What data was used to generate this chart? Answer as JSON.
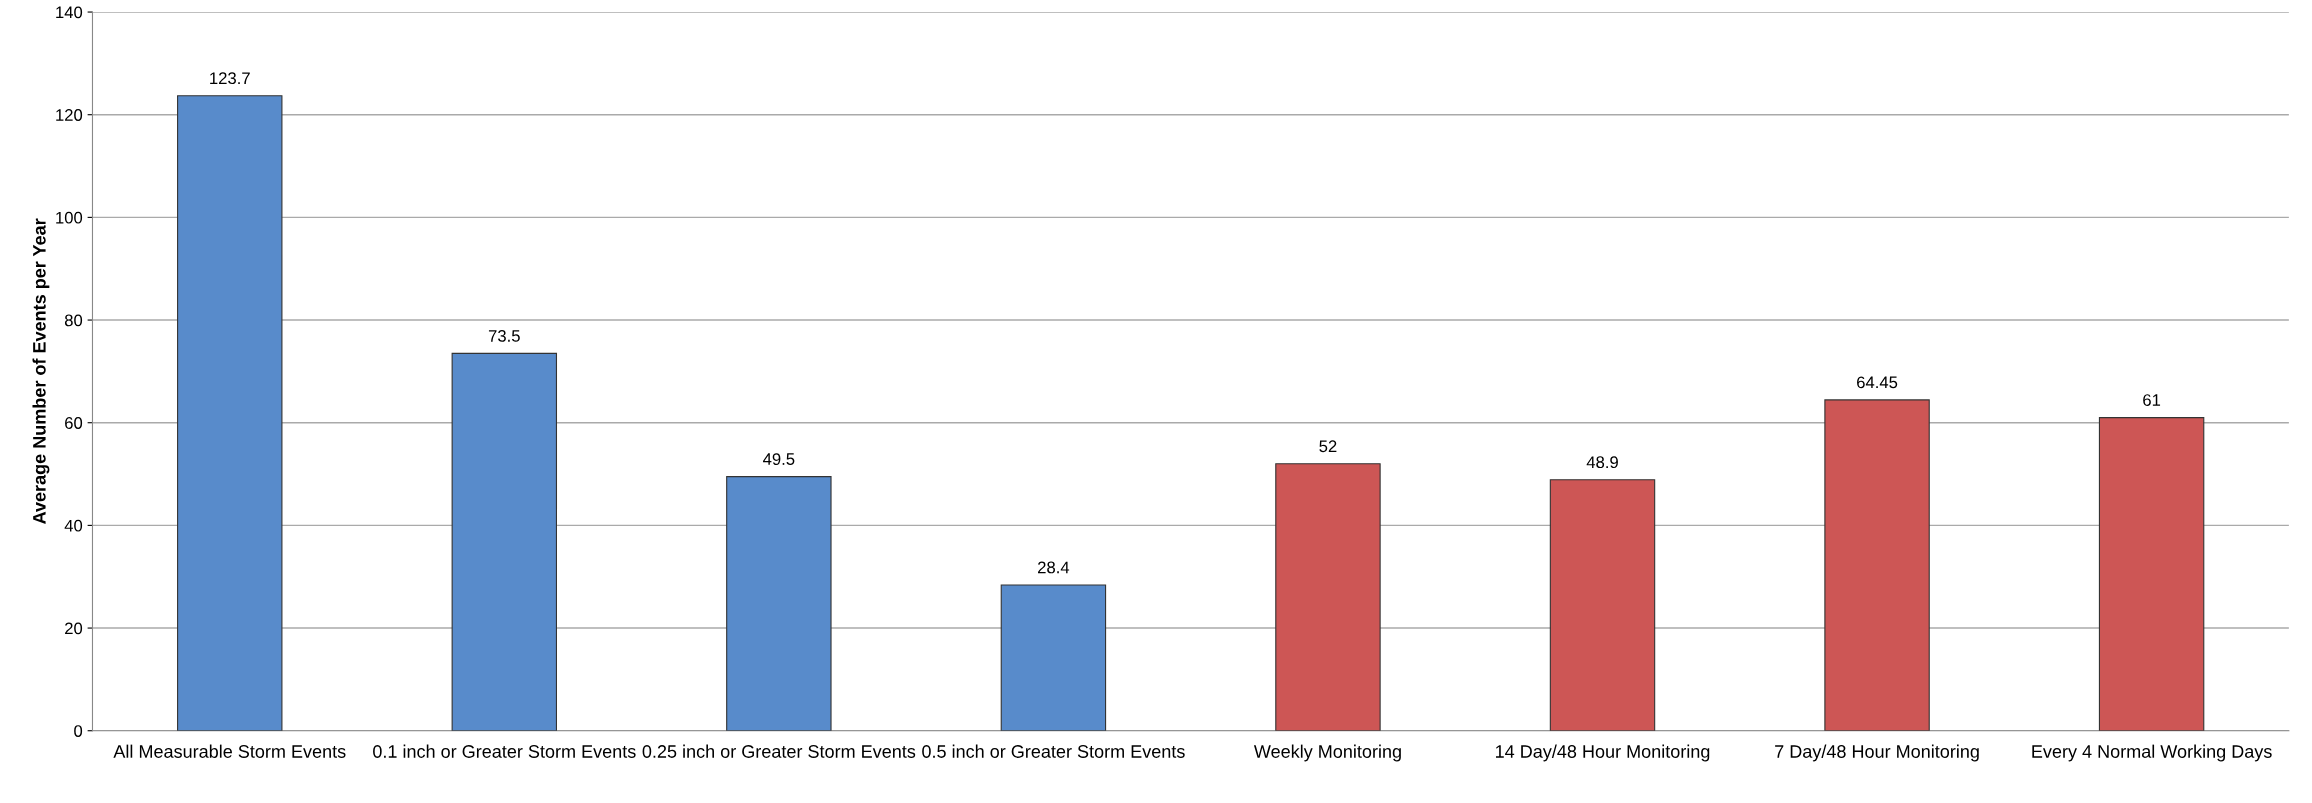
{
  "chart_data": {
    "type": "bar",
    "ylabel": "Average Number of Events per Year",
    "categories": [
      "All Measurable Storm Events",
      "0.1 inch or Greater Storm Events",
      "0.25 inch or Greater Storm Events",
      "0.5 inch or Greater Storm Events",
      "Weekly Monitoring",
      "14 Day/48 Hour Monitoring",
      "7 Day/48 Hour Monitoring",
      "Every 4 Normal Working Days"
    ],
    "values": [
      123.7,
      73.5,
      49.5,
      28.4,
      52,
      48.9,
      64.45,
      61
    ],
    "colors": [
      "#588bcb",
      "#588bcb",
      "#588bcb",
      "#588bcb",
      "#cd5655",
      "#cd5655",
      "#cd5655",
      "#cd5655"
    ],
    "data_labels": true,
    "ylim": [
      0,
      140
    ],
    "yticks": [
      0,
      20,
      40,
      60,
      80,
      100,
      120,
      140
    ],
    "grid": "y"
  }
}
